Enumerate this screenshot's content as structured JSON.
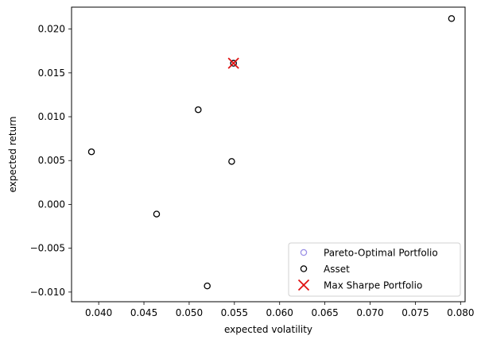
{
  "chart_data": {
    "type": "scatter",
    "xlabel": "expected volatility",
    "ylabel": "expected return",
    "xlim": [
      0.037,
      0.0805
    ],
    "ylim": [
      -0.0111,
      0.0225
    ],
    "xticks": [
      0.04,
      0.045,
      0.05,
      0.055,
      0.06,
      0.065,
      0.07,
      0.075,
      0.08
    ],
    "xtick_labels": [
      "0.040",
      "0.045",
      "0.050",
      "0.055",
      "0.060",
      "0.065",
      "0.070",
      "0.075",
      "0.080"
    ],
    "yticks": [
      -0.01,
      -0.005,
      0.0,
      0.005,
      0.01,
      0.015,
      0.02
    ],
    "ytick_labels": [
      "−0.010",
      "−0.005",
      "0.000",
      "0.005",
      "0.010",
      "0.015",
      "0.020"
    ],
    "grid": false,
    "legend_position": "lower-right",
    "series": [
      {
        "name": "Pareto-Optimal Portfolio",
        "marker": "open-circle",
        "color": "#9a8fe6",
        "points": [
          [
            0.0549,
            0.0161
          ]
        ]
      },
      {
        "name": "Asset",
        "marker": "open-circle",
        "color": "#000000",
        "points": [
          [
            0.0392,
            0.006
          ],
          [
            0.0464,
            -0.0011
          ],
          [
            0.051,
            0.0108
          ],
          [
            0.052,
            -0.0093
          ],
          [
            0.0547,
            0.0049
          ],
          [
            0.0549,
            0.0161
          ],
          [
            0.079,
            0.0212
          ]
        ]
      },
      {
        "name": "Max Sharpe Portfolio",
        "marker": "x",
        "color": "#e01010",
        "points": [
          [
            0.0549,
            0.0161
          ]
        ]
      }
    ]
  }
}
